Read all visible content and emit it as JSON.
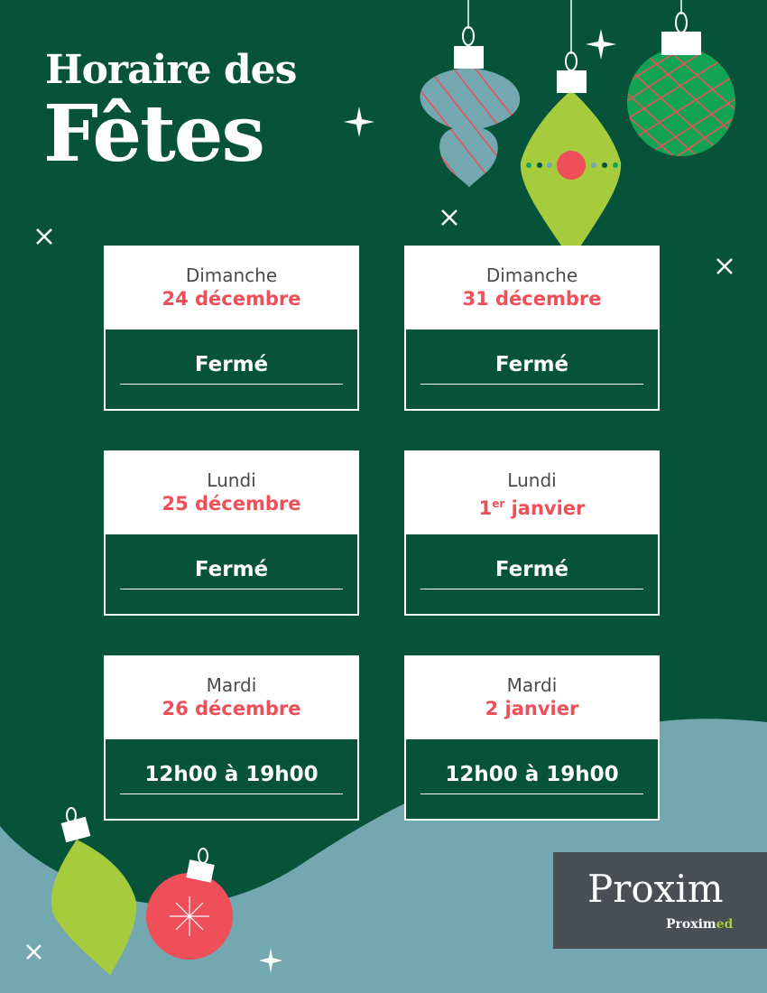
{
  "title": {
    "line1": "Horaire des",
    "line2": "Fêtes"
  },
  "colors": {
    "background": "#06533a",
    "accent_red": "#ef4f58",
    "lime": "#a6cc3e",
    "teal": "#74a8b0",
    "logo_bg": "#4a4e55"
  },
  "schedule": [
    {
      "day": "Dimanche",
      "date": "24 décembre",
      "hours": "Fermé"
    },
    {
      "day": "Dimanche",
      "date": "31 décembre",
      "hours": "Fermé"
    },
    {
      "day": "Lundi",
      "date": "25 décembre",
      "hours": "Fermé"
    },
    {
      "day": "Lundi",
      "date_num": "1",
      "date_sup": "er",
      "date_rest": " janvier",
      "hours": "Fermé"
    },
    {
      "day": "Mardi",
      "date": "26 décembre",
      "hours": "12h00 à 19h00"
    },
    {
      "day": "Mardi",
      "date": "2 janvier",
      "hours": "12h00 à 19h00"
    }
  ],
  "logo": {
    "main": "Proxim",
    "sub_a": "Proxim",
    "sub_b": "ed"
  }
}
